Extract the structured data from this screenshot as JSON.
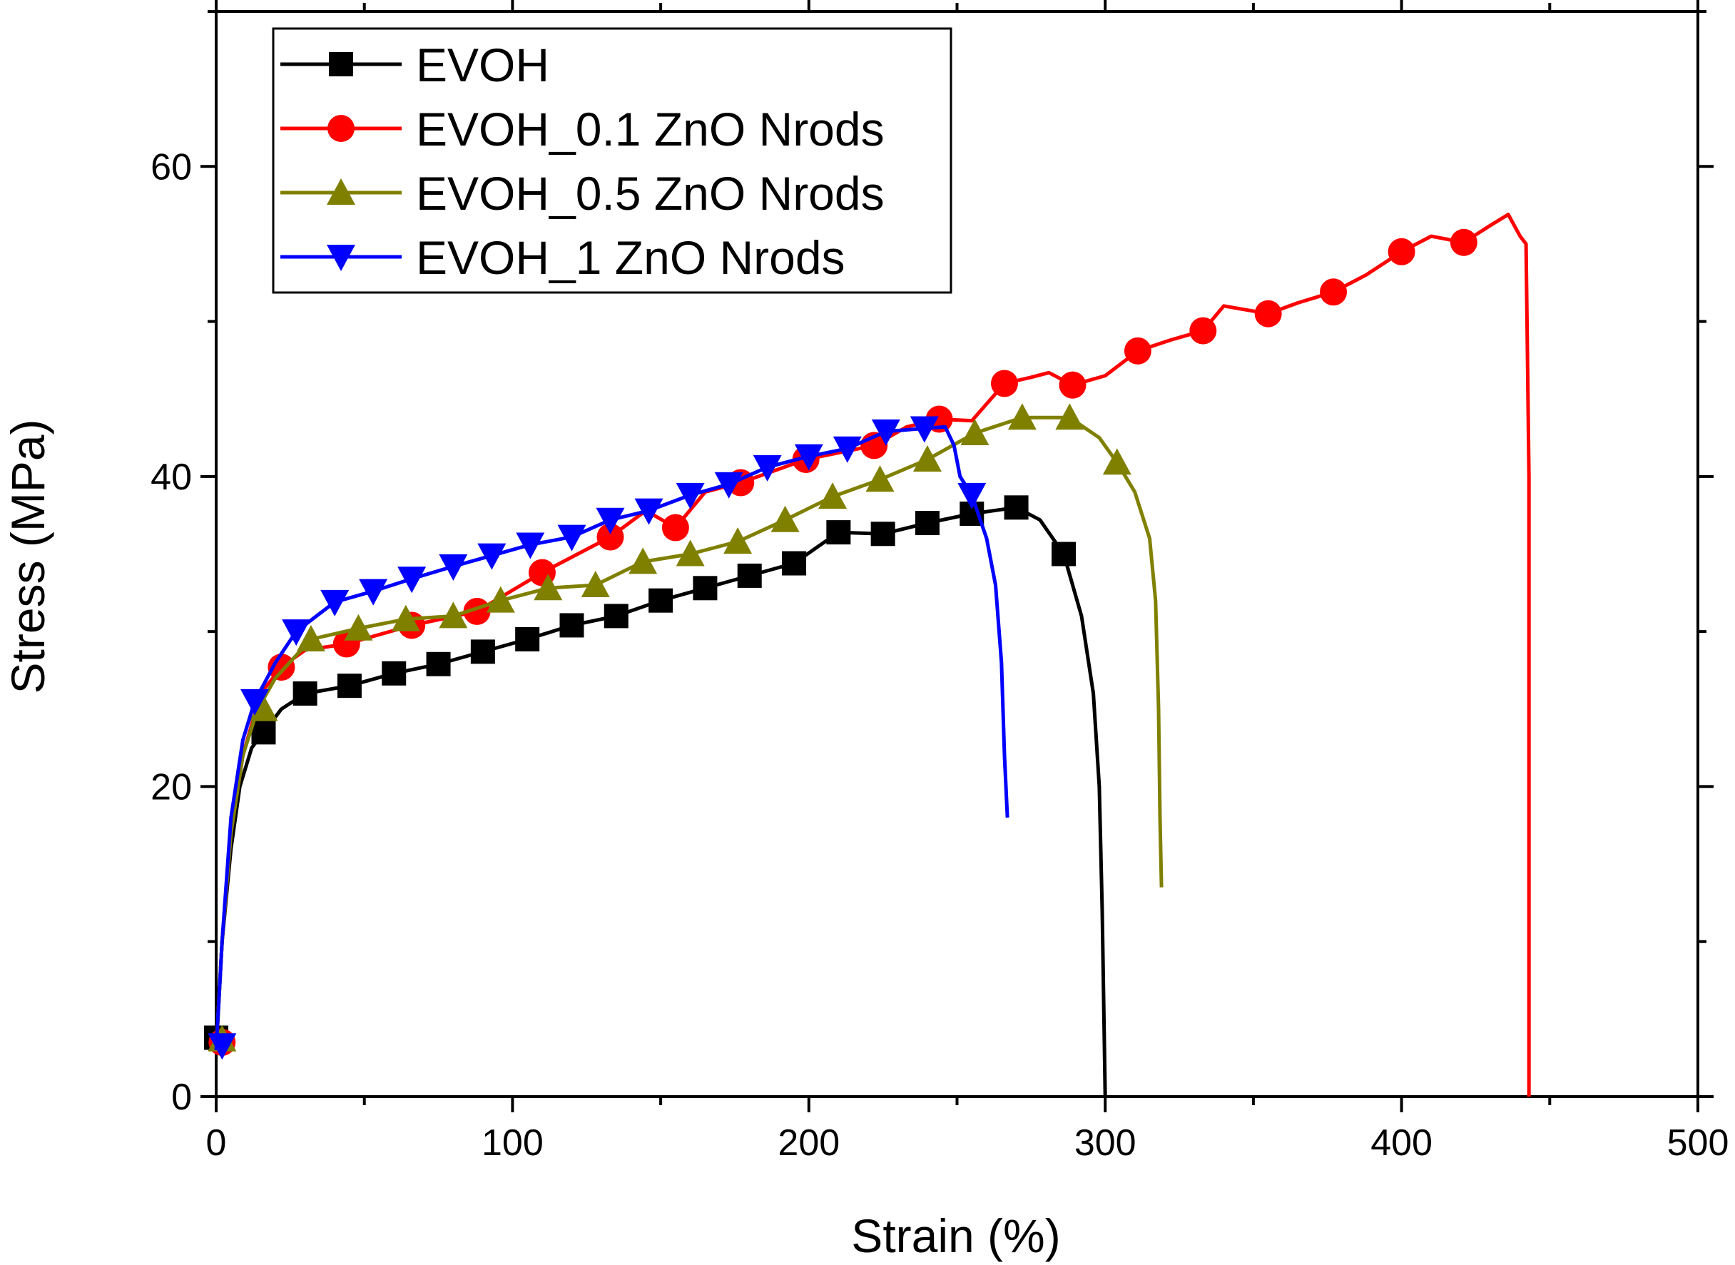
{
  "chart_data": {
    "type": "line",
    "title": "",
    "xlabel": "Strain (%)",
    "ylabel": "Stress (MPa)",
    "xlim": [
      0,
      500
    ],
    "ylim": [
      0,
      70
    ],
    "xticks": [
      0,
      100,
      200,
      300,
      400,
      500
    ],
    "yticks": [
      0,
      20,
      40,
      60
    ],
    "grid": false,
    "legend_position": "top-left",
    "series": [
      {
        "name": "EVOH",
        "color": "#000000",
        "marker": "square",
        "points": [
          [
            0,
            3
          ],
          [
            2,
            10
          ],
          [
            5,
            16
          ],
          [
            8,
            20
          ],
          [
            12,
            22.5
          ],
          [
            16,
            23.5
          ],
          [
            22,
            25
          ],
          [
            30,
            26
          ],
          [
            45,
            26.5
          ],
          [
            60,
            27.3
          ],
          [
            75,
            27.9
          ],
          [
            90,
            28.7
          ],
          [
            105,
            29.5
          ],
          [
            120,
            30.4
          ],
          [
            135,
            31
          ],
          [
            150,
            32
          ],
          [
            165,
            32.8
          ],
          [
            180,
            33.6
          ],
          [
            195,
            34.4
          ],
          [
            210,
            36.4
          ],
          [
            225,
            36.3
          ],
          [
            240,
            37
          ],
          [
            255,
            37.6
          ],
          [
            270,
            38
          ],
          [
            278,
            37.2
          ],
          [
            286,
            35
          ],
          [
            292,
            31
          ],
          [
            296,
            26
          ],
          [
            298,
            20
          ],
          [
            299,
            12
          ],
          [
            300,
            0
          ]
        ],
        "markers": [
          [
            0,
            3.8
          ],
          [
            16,
            23.5
          ],
          [
            30,
            26
          ],
          [
            45,
            26.5
          ],
          [
            60,
            27.3
          ],
          [
            75,
            27.9
          ],
          [
            90,
            28.7
          ],
          [
            105,
            29.5
          ],
          [
            120,
            30.4
          ],
          [
            135,
            31
          ],
          [
            150,
            32
          ],
          [
            165,
            32.8
          ],
          [
            180,
            33.6
          ],
          [
            195,
            34.4
          ],
          [
            210,
            36.4
          ],
          [
            225,
            36.3
          ],
          [
            240,
            37
          ],
          [
            255,
            37.6
          ],
          [
            270,
            38
          ],
          [
            286,
            35
          ]
        ]
      },
      {
        "name": "EVOH_0.1 ZnO Nrods",
        "color": "#ff0000",
        "marker": "circle",
        "points": [
          [
            0,
            3
          ],
          [
            2,
            10
          ],
          [
            5,
            17
          ],
          [
            9,
            22
          ],
          [
            15,
            26
          ],
          [
            22,
            27.7
          ],
          [
            30,
            28.8
          ],
          [
            44,
            29.2
          ],
          [
            66,
            30.4
          ],
          [
            88,
            31.3
          ],
          [
            110,
            33.8
          ],
          [
            133,
            36.1
          ],
          [
            145,
            37.8
          ],
          [
            155,
            36.7
          ],
          [
            165,
            39
          ],
          [
            177,
            39.6
          ],
          [
            199,
            41.1
          ],
          [
            222,
            42
          ],
          [
            233,
            43.2
          ],
          [
            244,
            43.7
          ],
          [
            255,
            43.6
          ],
          [
            266,
            46
          ],
          [
            275,
            46.4
          ],
          [
            281,
            46.7
          ],
          [
            289,
            45.9
          ],
          [
            300,
            46.5
          ],
          [
            311,
            48.1
          ],
          [
            322,
            48.8
          ],
          [
            333,
            49.4
          ],
          [
            340,
            51
          ],
          [
            355,
            50.5
          ],
          [
            365,
            51.2
          ],
          [
            377,
            51.9
          ],
          [
            388,
            53
          ],
          [
            400,
            54.5
          ],
          [
            410,
            55.5
          ],
          [
            421,
            55.1
          ],
          [
            430,
            56.2
          ],
          [
            436,
            56.9
          ],
          [
            440,
            55.5
          ],
          [
            442,
            55
          ],
          [
            443,
            40
          ],
          [
            443,
            0
          ]
        ],
        "markers": [
          [
            2,
            3.5
          ],
          [
            22,
            27.7
          ],
          [
            44,
            29.2
          ],
          [
            66,
            30.4
          ],
          [
            88,
            31.3
          ],
          [
            110,
            33.8
          ],
          [
            133,
            36.1
          ],
          [
            155,
            36.7
          ],
          [
            177,
            39.6
          ],
          [
            199,
            41.1
          ],
          [
            222,
            42
          ],
          [
            244,
            43.7
          ],
          [
            266,
            46
          ],
          [
            289,
            45.9
          ],
          [
            311,
            48.1
          ],
          [
            333,
            49.4
          ],
          [
            355,
            50.5
          ],
          [
            377,
            51.9
          ],
          [
            400,
            54.5
          ],
          [
            421,
            55.1
          ]
        ]
      },
      {
        "name": "EVOH_0.5 ZnO Nrods",
        "color": "#808000",
        "marker": "triangle-up",
        "points": [
          [
            0,
            3
          ],
          [
            2,
            10
          ],
          [
            5,
            17
          ],
          [
            9,
            22
          ],
          [
            14,
            25
          ],
          [
            20,
            27
          ],
          [
            32,
            29.5
          ],
          [
            48,
            30.2
          ],
          [
            64,
            30.8
          ],
          [
            80,
            31
          ],
          [
            96,
            32
          ],
          [
            112,
            32.8
          ],
          [
            128,
            33
          ],
          [
            144,
            34.5
          ],
          [
            160,
            35
          ],
          [
            176,
            35.8
          ],
          [
            192,
            37.2
          ],
          [
            208,
            38.7
          ],
          [
            224,
            39.8
          ],
          [
            240,
            41.1
          ],
          [
            256,
            42.8
          ],
          [
            272,
            43.8
          ],
          [
            288,
            43.8
          ],
          [
            298,
            42.5
          ],
          [
            304,
            40.9
          ],
          [
            310,
            39
          ],
          [
            315,
            36
          ],
          [
            317,
            32
          ],
          [
            318,
            25
          ],
          [
            318.5,
            18
          ],
          [
            319,
            13.5
          ]
        ],
        "markers": [
          [
            2,
            3.7
          ],
          [
            16,
            25
          ],
          [
            32,
            29.5
          ],
          [
            48,
            30.2
          ],
          [
            64,
            30.8
          ],
          [
            80,
            31
          ],
          [
            96,
            32
          ],
          [
            112,
            32.8
          ],
          [
            128,
            33
          ],
          [
            144,
            34.5
          ],
          [
            160,
            35
          ],
          [
            176,
            35.8
          ],
          [
            192,
            37.2
          ],
          [
            208,
            38.7
          ],
          [
            224,
            39.8
          ],
          [
            240,
            41.1
          ],
          [
            256,
            42.8
          ],
          [
            272,
            43.8
          ],
          [
            288,
            43.8
          ],
          [
            304,
            40.9
          ]
        ]
      },
      {
        "name": "EVOH_1 ZnO Nrods",
        "color": "#0000ff",
        "marker": "triangle-down",
        "points": [
          [
            0,
            3
          ],
          [
            2,
            10
          ],
          [
            5,
            18
          ],
          [
            9,
            23
          ],
          [
            13,
            25.5
          ],
          [
            20,
            28
          ],
          [
            27,
            30
          ],
          [
            40,
            31.9
          ],
          [
            53,
            32.6
          ],
          [
            66,
            33.4
          ],
          [
            80,
            34.2
          ],
          [
            93,
            34.9
          ],
          [
            106,
            35.6
          ],
          [
            120,
            36.1
          ],
          [
            133,
            37.2
          ],
          [
            146,
            37.8
          ],
          [
            160,
            38.8
          ],
          [
            173,
            39.5
          ],
          [
            186,
            40.6
          ],
          [
            200,
            41.3
          ],
          [
            213,
            41.8
          ],
          [
            226,
            42.9
          ],
          [
            239,
            43.1
          ],
          [
            246,
            43.2
          ],
          [
            249,
            42
          ],
          [
            251,
            40
          ],
          [
            255,
            38.8
          ],
          [
            260,
            36
          ],
          [
            263,
            33
          ],
          [
            265,
            28
          ],
          [
            266,
            22
          ],
          [
            267,
            18
          ]
        ],
        "markers": [
          [
            2,
            3.3
          ],
          [
            13,
            25.5
          ],
          [
            27,
            30
          ],
          [
            40,
            31.9
          ],
          [
            53,
            32.6
          ],
          [
            66,
            33.4
          ],
          [
            80,
            34.2
          ],
          [
            93,
            34.9
          ],
          [
            106,
            35.6
          ],
          [
            120,
            36.1
          ],
          [
            133,
            37.2
          ],
          [
            146,
            37.8
          ],
          [
            160,
            38.8
          ],
          [
            173,
            39.5
          ],
          [
            186,
            40.6
          ],
          [
            200,
            41.3
          ],
          [
            213,
            41.8
          ],
          [
            226,
            42.9
          ],
          [
            239,
            43.1
          ],
          [
            255,
            38.8
          ]
        ]
      }
    ]
  }
}
